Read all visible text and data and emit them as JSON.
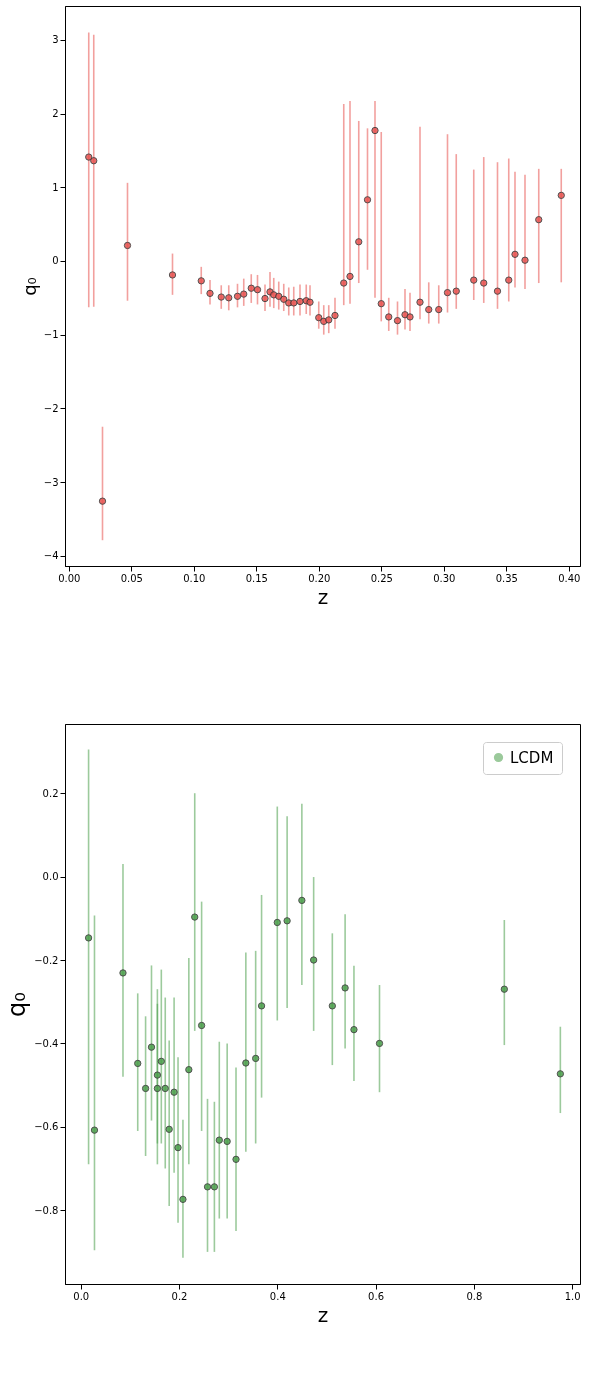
{
  "chart_data": [
    {
      "type": "scatter",
      "xlabel": "z",
      "ylabel": "q₀",
      "marker": "circle",
      "grid": false,
      "legend": false,
      "xlim": [
        -0.003,
        0.409
      ],
      "ylim": [
        -4.14,
        3.46
      ],
      "xticks": [
        {
          "value": 0,
          "label": "0.00"
        },
        {
          "value": 0.05,
          "label": "0.05"
        },
        {
          "value": 0.1,
          "label": "0.10"
        },
        {
          "value": 0.15,
          "label": "0.15"
        },
        {
          "value": 0.2,
          "label": "0.20"
        },
        {
          "value": 0.25,
          "label": "0.25"
        },
        {
          "value": 0.3,
          "label": "0.30"
        },
        {
          "value": 0.35,
          "label": "0.35"
        },
        {
          "value": 0.4,
          "label": "0.40"
        }
      ],
      "yticks": [
        {
          "value": -4,
          "label": "−4"
        },
        {
          "value": -3,
          "label": "−3"
        },
        {
          "value": -2,
          "label": "−2"
        },
        {
          "value": -1,
          "label": "−1"
        },
        0,
        1,
        2,
        3
      ],
      "series": [
        {
          "color": "#e8524f",
          "x": [
            0.016,
            0.02,
            0.027,
            0.047,
            0.083,
            0.106,
            0.113,
            0.122,
            0.128,
            0.135,
            0.14,
            0.146,
            0.151,
            0.157,
            0.161,
            0.164,
            0.168,
            0.172,
            0.176,
            0.18,
            0.185,
            0.19,
            0.193,
            0.2,
            0.204,
            0.208,
            0.213,
            0.22,
            0.225,
            0.232,
            0.239,
            0.245,
            0.25,
            0.256,
            0.263,
            0.269,
            0.273,
            0.281,
            0.288,
            0.296,
            0.303,
            0.31,
            0.324,
            0.332,
            0.343,
            0.352,
            0.357,
            0.365,
            0.376,
            0.394
          ],
          "values": [
            1.41,
            1.36,
            -3.26,
            0.21,
            -0.19,
            -0.27,
            -0.44,
            -0.49,
            -0.5,
            -0.48,
            -0.45,
            -0.37,
            -0.39,
            -0.51,
            -0.42,
            -0.46,
            -0.48,
            -0.52,
            -0.57,
            -0.57,
            -0.55,
            -0.54,
            -0.56,
            -0.77,
            -0.82,
            -0.8,
            -0.74,
            -0.3,
            -0.21,
            0.26,
            0.83,
            1.77,
            -0.58,
            -0.76,
            -0.81,
            -0.73,
            -0.76,
            -0.56,
            -0.66,
            -0.66,
            -0.43,
            -0.41,
            -0.26,
            -0.3,
            -0.41,
            -0.26,
            0.09,
            0.01,
            0.56,
            0.89
          ],
          "errors": [
            [
              -0.63,
              3.1
            ],
            [
              -0.62,
              3.07
            ],
            [
              -3.79,
              -2.25
            ],
            [
              -0.54,
              1.06
            ],
            [
              -0.46,
              0.1
            ],
            [
              -0.45,
              -0.08
            ],
            [
              -0.59,
              -0.26
            ],
            [
              -0.65,
              -0.33
            ],
            [
              -0.67,
              -0.33
            ],
            [
              -0.63,
              -0.31
            ],
            [
              -0.61,
              -0.24
            ],
            [
              -0.57,
              -0.18
            ],
            [
              -0.59,
              -0.19
            ],
            [
              -0.68,
              -0.32
            ],
            [
              -0.62,
              -0.15
            ],
            [
              -0.64,
              -0.23
            ],
            [
              -0.66,
              -0.28
            ],
            [
              -0.68,
              -0.31
            ],
            [
              -0.74,
              -0.36
            ],
            [
              -0.74,
              -0.35
            ],
            [
              -0.74,
              -0.32
            ],
            [
              -0.72,
              -0.32
            ],
            [
              -0.74,
              -0.33
            ],
            [
              -0.92,
              -0.55
            ],
            [
              -1.0,
              -0.6
            ],
            [
              -0.98,
              -0.6
            ],
            [
              -0.92,
              -0.5
            ],
            [
              -0.6,
              2.13
            ],
            [
              -0.58,
              2.17
            ],
            [
              -0.3,
              1.9
            ],
            [
              -0.12,
              1.8
            ],
            [
              -0.5,
              2.17
            ],
            [
              -0.82,
              1.75
            ],
            [
              -0.95,
              -0.5
            ],
            [
              -1.0,
              -0.55
            ],
            [
              -0.93,
              -0.38
            ],
            [
              -0.95,
              -0.43
            ],
            [
              -0.79,
              1.82
            ],
            [
              -0.85,
              -0.29
            ],
            [
              -0.85,
              -0.33
            ],
            [
              -0.7,
              1.72
            ],
            [
              -0.65,
              1.45
            ],
            [
              -0.53,
              1.24
            ],
            [
              -0.57,
              1.41
            ],
            [
              -0.65,
              1.34
            ],
            [
              -0.55,
              1.39
            ],
            [
              -0.36,
              1.21
            ],
            [
              -0.38,
              1.17
            ],
            [
              -0.3,
              1.25
            ],
            [
              -0.29,
              1.25
            ]
          ]
        }
      ]
    },
    {
      "type": "scatter",
      "xlabel": "z",
      "ylabel": "q₀",
      "marker": "circle",
      "grid": false,
      "legend": "top right",
      "xlim": [
        -0.032,
        1.016
      ],
      "ylim": [
        -0.977,
        0.366
      ],
      "xticks": [
        {
          "value": 0,
          "label": "0.0"
        },
        0.2,
        0.4,
        0.6,
        0.8,
        {
          "value": 1,
          "label": "1.0"
        }
      ],
      "yticks": [
        {
          "value": -0.8,
          "label": "−0.8"
        },
        {
          "value": -0.6,
          "label": "−0.6"
        },
        {
          "value": -0.4,
          "label": "−0.4"
        },
        {
          "value": -0.2,
          "label": "−0.2"
        },
        {
          "value": 0,
          "label": "0.0"
        },
        0.2
      ],
      "series": [
        {
          "name": "LCDM",
          "color": "#4a9e4a",
          "x": [
            0.016,
            0.028,
            0.086,
            0.116,
            0.132,
            0.144,
            0.156,
            0.156,
            0.164,
            0.172,
            0.18,
            0.19,
            0.198,
            0.208,
            0.22,
            0.232,
            0.246,
            0.258,
            0.272,
            0.282,
            0.298,
            0.316,
            0.336,
            0.356,
            0.368,
            0.4,
            0.42,
            0.45,
            0.474,
            0.512,
            0.538,
            0.556,
            0.608,
            0.862,
            0.976
          ],
          "values": [
            -0.147,
            -0.608,
            -0.231,
            -0.448,
            -0.508,
            -0.409,
            -0.476,
            -0.508,
            -0.443,
            -0.508,
            -0.606,
            -0.517,
            -0.65,
            -0.774,
            -0.463,
            -0.097,
            -0.357,
            -0.744,
            -0.744,
            -0.632,
            -0.635,
            -0.678,
            -0.447,
            -0.436,
            -0.31,
            -0.11,
            -0.106,
            -0.057,
            -0.2,
            -0.31,
            -0.267,
            -0.367,
            -0.4,
            -0.27,
            -0.473
          ],
          "errors": [
            [
              -0.69,
              0.305
            ],
            [
              -0.896,
              -0.093
            ],
            [
              -0.48,
              0.03
            ],
            [
              -0.61,
              -0.28
            ],
            [
              -0.67,
              -0.335
            ],
            [
              -0.585,
              -0.213
            ],
            [
              -0.69,
              -0.27
            ],
            [
              -0.64,
              -0.305
            ],
            [
              -0.64,
              -0.223
            ],
            [
              -0.7,
              -0.29
            ],
            [
              -0.79,
              -0.393
            ],
            [
              -0.71,
              -0.29
            ],
            [
              -0.83,
              -0.433
            ],
            [
              -0.914,
              -0.583
            ],
            [
              -0.69,
              -0.195
            ],
            [
              -0.37,
              0.2
            ],
            [
              -0.61,
              -0.06
            ],
            [
              -0.9,
              -0.533
            ],
            [
              -0.9,
              -0.54
            ],
            [
              -0.82,
              -0.396
            ],
            [
              -0.82,
              -0.4
            ],
            [
              -0.85,
              -0.458
            ],
            [
              -0.66,
              -0.182
            ],
            [
              -0.64,
              -0.178
            ],
            [
              -0.53,
              -0.044
            ],
            [
              -0.345,
              0.168
            ],
            [
              -0.315,
              0.145
            ],
            [
              -0.26,
              0.175
            ],
            [
              -0.37,
              -0.001
            ],
            [
              -0.452,
              -0.136
            ],
            [
              -0.412,
              -0.09
            ],
            [
              -0.49,
              -0.214
            ],
            [
              -0.517,
              -0.26
            ],
            [
              -0.404,
              -0.104
            ],
            [
              -0.567,
              -0.36
            ]
          ]
        }
      ]
    }
  ]
}
